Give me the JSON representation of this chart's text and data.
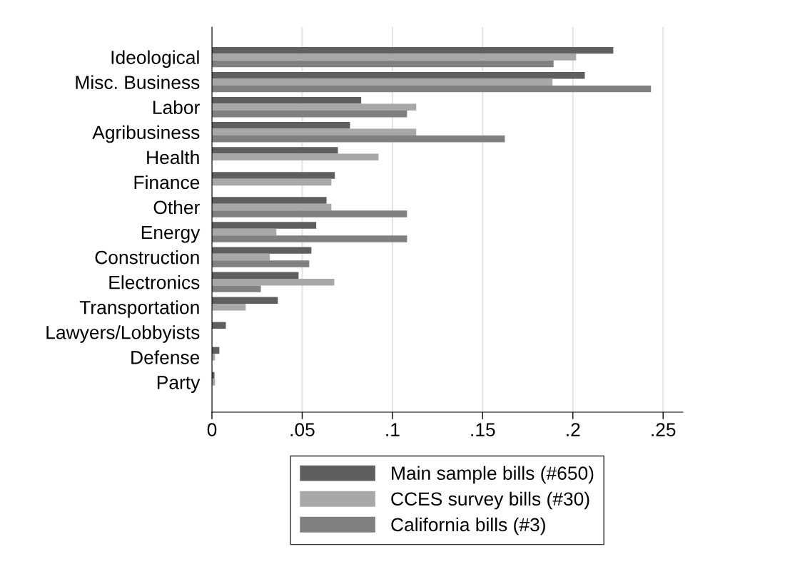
{
  "chart_data": {
    "type": "bar",
    "orientation": "horizontal",
    "categories": [
      "Ideological",
      "Misc. Business",
      "Labor",
      "Agribusiness",
      "Health",
      "Finance",
      "Other",
      "Energy",
      "Construction",
      "Electronics",
      "Transportation",
      "Lawyers/Lobbyists",
      "Defense",
      "Party"
    ],
    "series": [
      {
        "name": "Main sample bills (#650)",
        "color": "#5f5f5f",
        "values": [
          0.2224,
          0.2066,
          0.0827,
          0.0765,
          0.0698,
          0.0681,
          0.0635,
          0.0578,
          0.0551,
          0.048,
          0.0365,
          0.0077,
          0.0041,
          0.0014
        ]
      },
      {
        "name": "CCES survey bills (#30)",
        "color": "#a8a8a8",
        "values": [
          0.2018,
          0.1887,
          0.1132,
          0.1132,
          0.0923,
          0.0662,
          0.0662,
          0.0357,
          0.0321,
          0.0678,
          0.0187,
          0,
          0.0017,
          0.0017
        ]
      },
      {
        "name": "California bills (#3)",
        "color": "#808080",
        "values": [
          0.1893,
          0.2433,
          0.1081,
          0.1623,
          0,
          0,
          0.1081,
          0.1081,
          0.0539,
          0.0271,
          0,
          0,
          0,
          0
        ]
      }
    ],
    "xlim": [
      0,
      0.261
    ],
    "xticks": [
      0,
      {
        "value": 0.05,
        "label": ".05"
      },
      {
        "value": 0.1,
        "label": ".1"
      },
      {
        "value": 0.15,
        "label": ".15"
      },
      {
        "value": 0.2,
        "label": ".2"
      },
      {
        "value": 0.25,
        "label": ".25"
      }
    ],
    "grid": "x",
    "legend": "bottom"
  }
}
